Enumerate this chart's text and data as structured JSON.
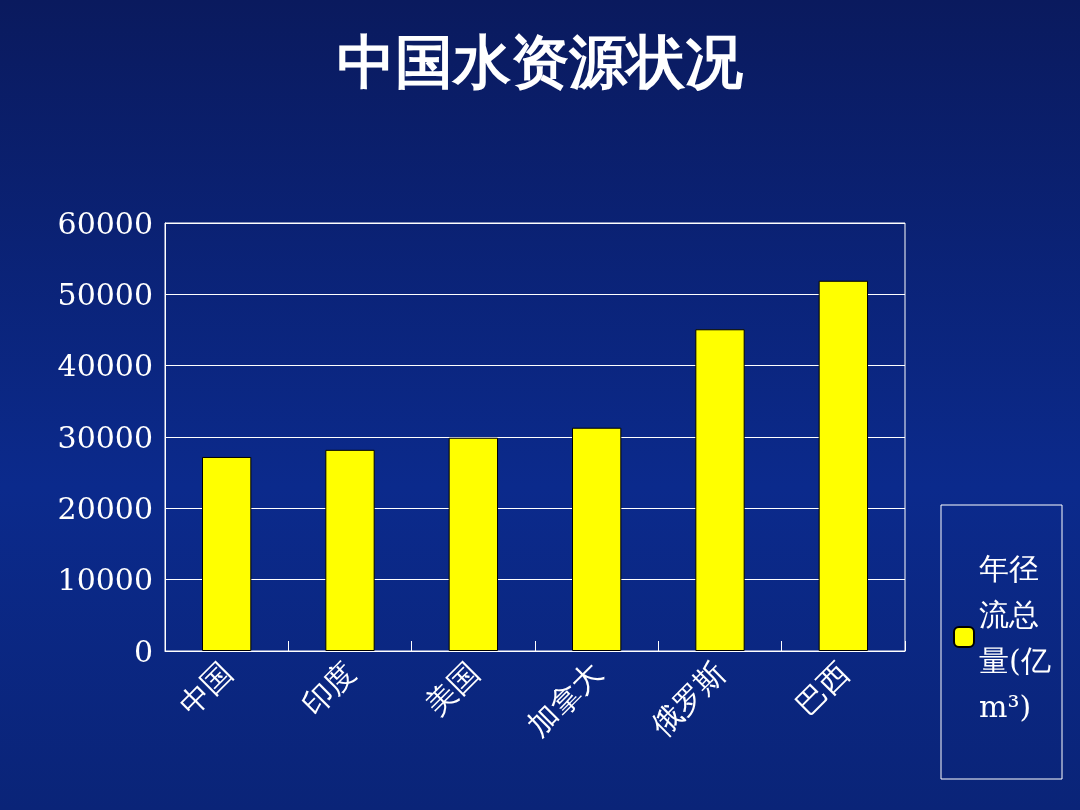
{
  "chart_data": {
    "type": "bar",
    "title": "中国水资源状况",
    "categories": [
      "中国",
      "印度",
      "美国",
      "加拿大",
      "俄罗斯",
      "巴西"
    ],
    "series": [
      {
        "name": "年径流总量(亿m³)",
        "color": "#ffff00",
        "values": [
          27200,
          28200,
          29900,
          31300,
          45100,
          51900
        ]
      }
    ],
    "ylim": [
      0,
      60000
    ],
    "yticks": [
      0,
      10000,
      20000,
      30000,
      40000,
      50000,
      60000
    ],
    "grid": "y",
    "legend": "right"
  }
}
